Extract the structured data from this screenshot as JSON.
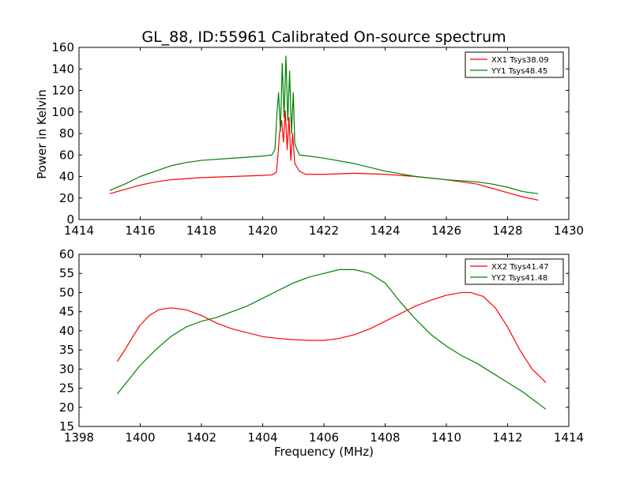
{
  "figure": {
    "title": "GL_88, ID:55961 Calibrated On-source spectrum",
    "ylabel": "Power in Kelvin",
    "xlabel": "Frequency (MHz)"
  },
  "colors": {
    "xx": "#ff0000",
    "yy": "#008000"
  },
  "chart_data": [
    {
      "type": "line",
      "xlim": [
        1414,
        1430
      ],
      "ylim": [
        0,
        160
      ],
      "x_ticks": [
        1414,
        1416,
        1418,
        1420,
        1422,
        1424,
        1426,
        1428,
        1430
      ],
      "y_ticks": [
        0,
        20,
        40,
        60,
        80,
        100,
        120,
        140,
        160
      ],
      "legend_position": "top-right",
      "grid": false,
      "series": [
        {
          "name": "XX1 Tsys38.09",
          "color": "#ff0000",
          "x": [
            1415.0,
            1415.5,
            1416.0,
            1416.5,
            1417.0,
            1417.5,
            1418.0,
            1419.0,
            1420.0,
            1420.3,
            1420.45,
            1420.5,
            1420.55,
            1420.62,
            1420.68,
            1420.74,
            1420.8,
            1420.86,
            1420.92,
            1420.98,
            1421.05,
            1421.2,
            1421.4,
            1422.0,
            1423.0,
            1424.0,
            1425.0,
            1426.0,
            1426.5,
            1427.0,
            1427.5,
            1428.0,
            1428.5,
            1429.0
          ],
          "y": [
            24,
            28,
            32,
            35,
            37,
            38,
            39,
            40,
            41,
            41.5,
            44,
            60,
            80,
            92,
            72,
            101,
            65,
            95,
            55,
            80,
            52,
            45,
            42,
            42,
            43,
            42,
            40,
            37,
            35,
            33,
            29,
            25,
            21,
            18
          ]
        },
        {
          "name": "YY1 Tsys48.45",
          "color": "#008000",
          "x": [
            1415.0,
            1415.5,
            1416.0,
            1416.5,
            1417.0,
            1417.5,
            1418.0,
            1419.0,
            1420.0,
            1420.3,
            1420.4,
            1420.47,
            1420.52,
            1420.58,
            1420.64,
            1420.7,
            1420.76,
            1420.82,
            1420.88,
            1420.94,
            1421.0,
            1421.05,
            1421.2,
            1421.5,
            1422.0,
            1423.0,
            1424.0,
            1425.0,
            1426.0,
            1426.5,
            1427.0,
            1427.5,
            1428.0,
            1428.5,
            1429.0
          ],
          "y": [
            27,
            33,
            40,
            45,
            50,
            53,
            55,
            57,
            59,
            60,
            65,
            100,
            118,
            82,
            145,
            95,
            152,
            92,
            138,
            80,
            118,
            70,
            60,
            59,
            57,
            52,
            45,
            40,
            37,
            36,
            35,
            33,
            30,
            26,
            24
          ]
        }
      ]
    },
    {
      "type": "line",
      "xlim": [
        1398,
        1414
      ],
      "ylim": [
        15,
        60
      ],
      "x_ticks": [
        1398,
        1400,
        1402,
        1404,
        1406,
        1408,
        1410,
        1412,
        1414
      ],
      "y_ticks": [
        15,
        20,
        25,
        30,
        35,
        40,
        45,
        50,
        55,
        60
      ],
      "legend_position": "top-right",
      "grid": false,
      "series": [
        {
          "name": "XX2 Tsys41.47",
          "color": "#ff0000",
          "x": [
            1399.25,
            1399.5,
            1399.8,
            1400.0,
            1400.3,
            1400.6,
            1401.0,
            1401.5,
            1402.0,
            1402.5,
            1403.0,
            1403.5,
            1404.0,
            1404.5,
            1405.0,
            1405.5,
            1406.0,
            1406.5,
            1407.0,
            1407.5,
            1408.0,
            1408.5,
            1409.0,
            1409.5,
            1410.0,
            1410.5,
            1410.8,
            1411.2,
            1411.6,
            1412.0,
            1412.4,
            1412.8,
            1413.25
          ],
          "y": [
            32,
            35,
            39,
            41.5,
            44,
            45.5,
            46,
            45.5,
            44,
            42,
            40.5,
            39.5,
            38.5,
            38,
            37.7,
            37.5,
            37.5,
            38,
            39,
            40.5,
            42.5,
            44.5,
            46.5,
            48,
            49.3,
            50,
            50,
            49,
            46,
            41,
            35,
            30,
            26.5
          ]
        },
        {
          "name": "YY2 Tsys41.48",
          "color": "#008000",
          "x": [
            1399.25,
            1399.5,
            1400.0,
            1400.5,
            1401.0,
            1401.5,
            1402.0,
            1402.5,
            1403.0,
            1403.5,
            1404.0,
            1404.5,
            1405.0,
            1405.5,
            1406.0,
            1406.5,
            1407.0,
            1407.5,
            1408.0,
            1408.5,
            1409.0,
            1409.5,
            1410.0,
            1410.5,
            1411.0,
            1411.5,
            1412.0,
            1412.5,
            1413.0,
            1413.25
          ],
          "y": [
            23.5,
            26,
            31,
            35,
            38.5,
            41,
            42.5,
            43.5,
            45,
            46.5,
            48.5,
            50.5,
            52.5,
            54,
            55,
            56,
            56,
            55,
            52.5,
            47.5,
            43,
            39,
            36,
            33.5,
            31.5,
            29,
            26.5,
            24,
            21,
            19.5
          ]
        }
      ]
    }
  ]
}
